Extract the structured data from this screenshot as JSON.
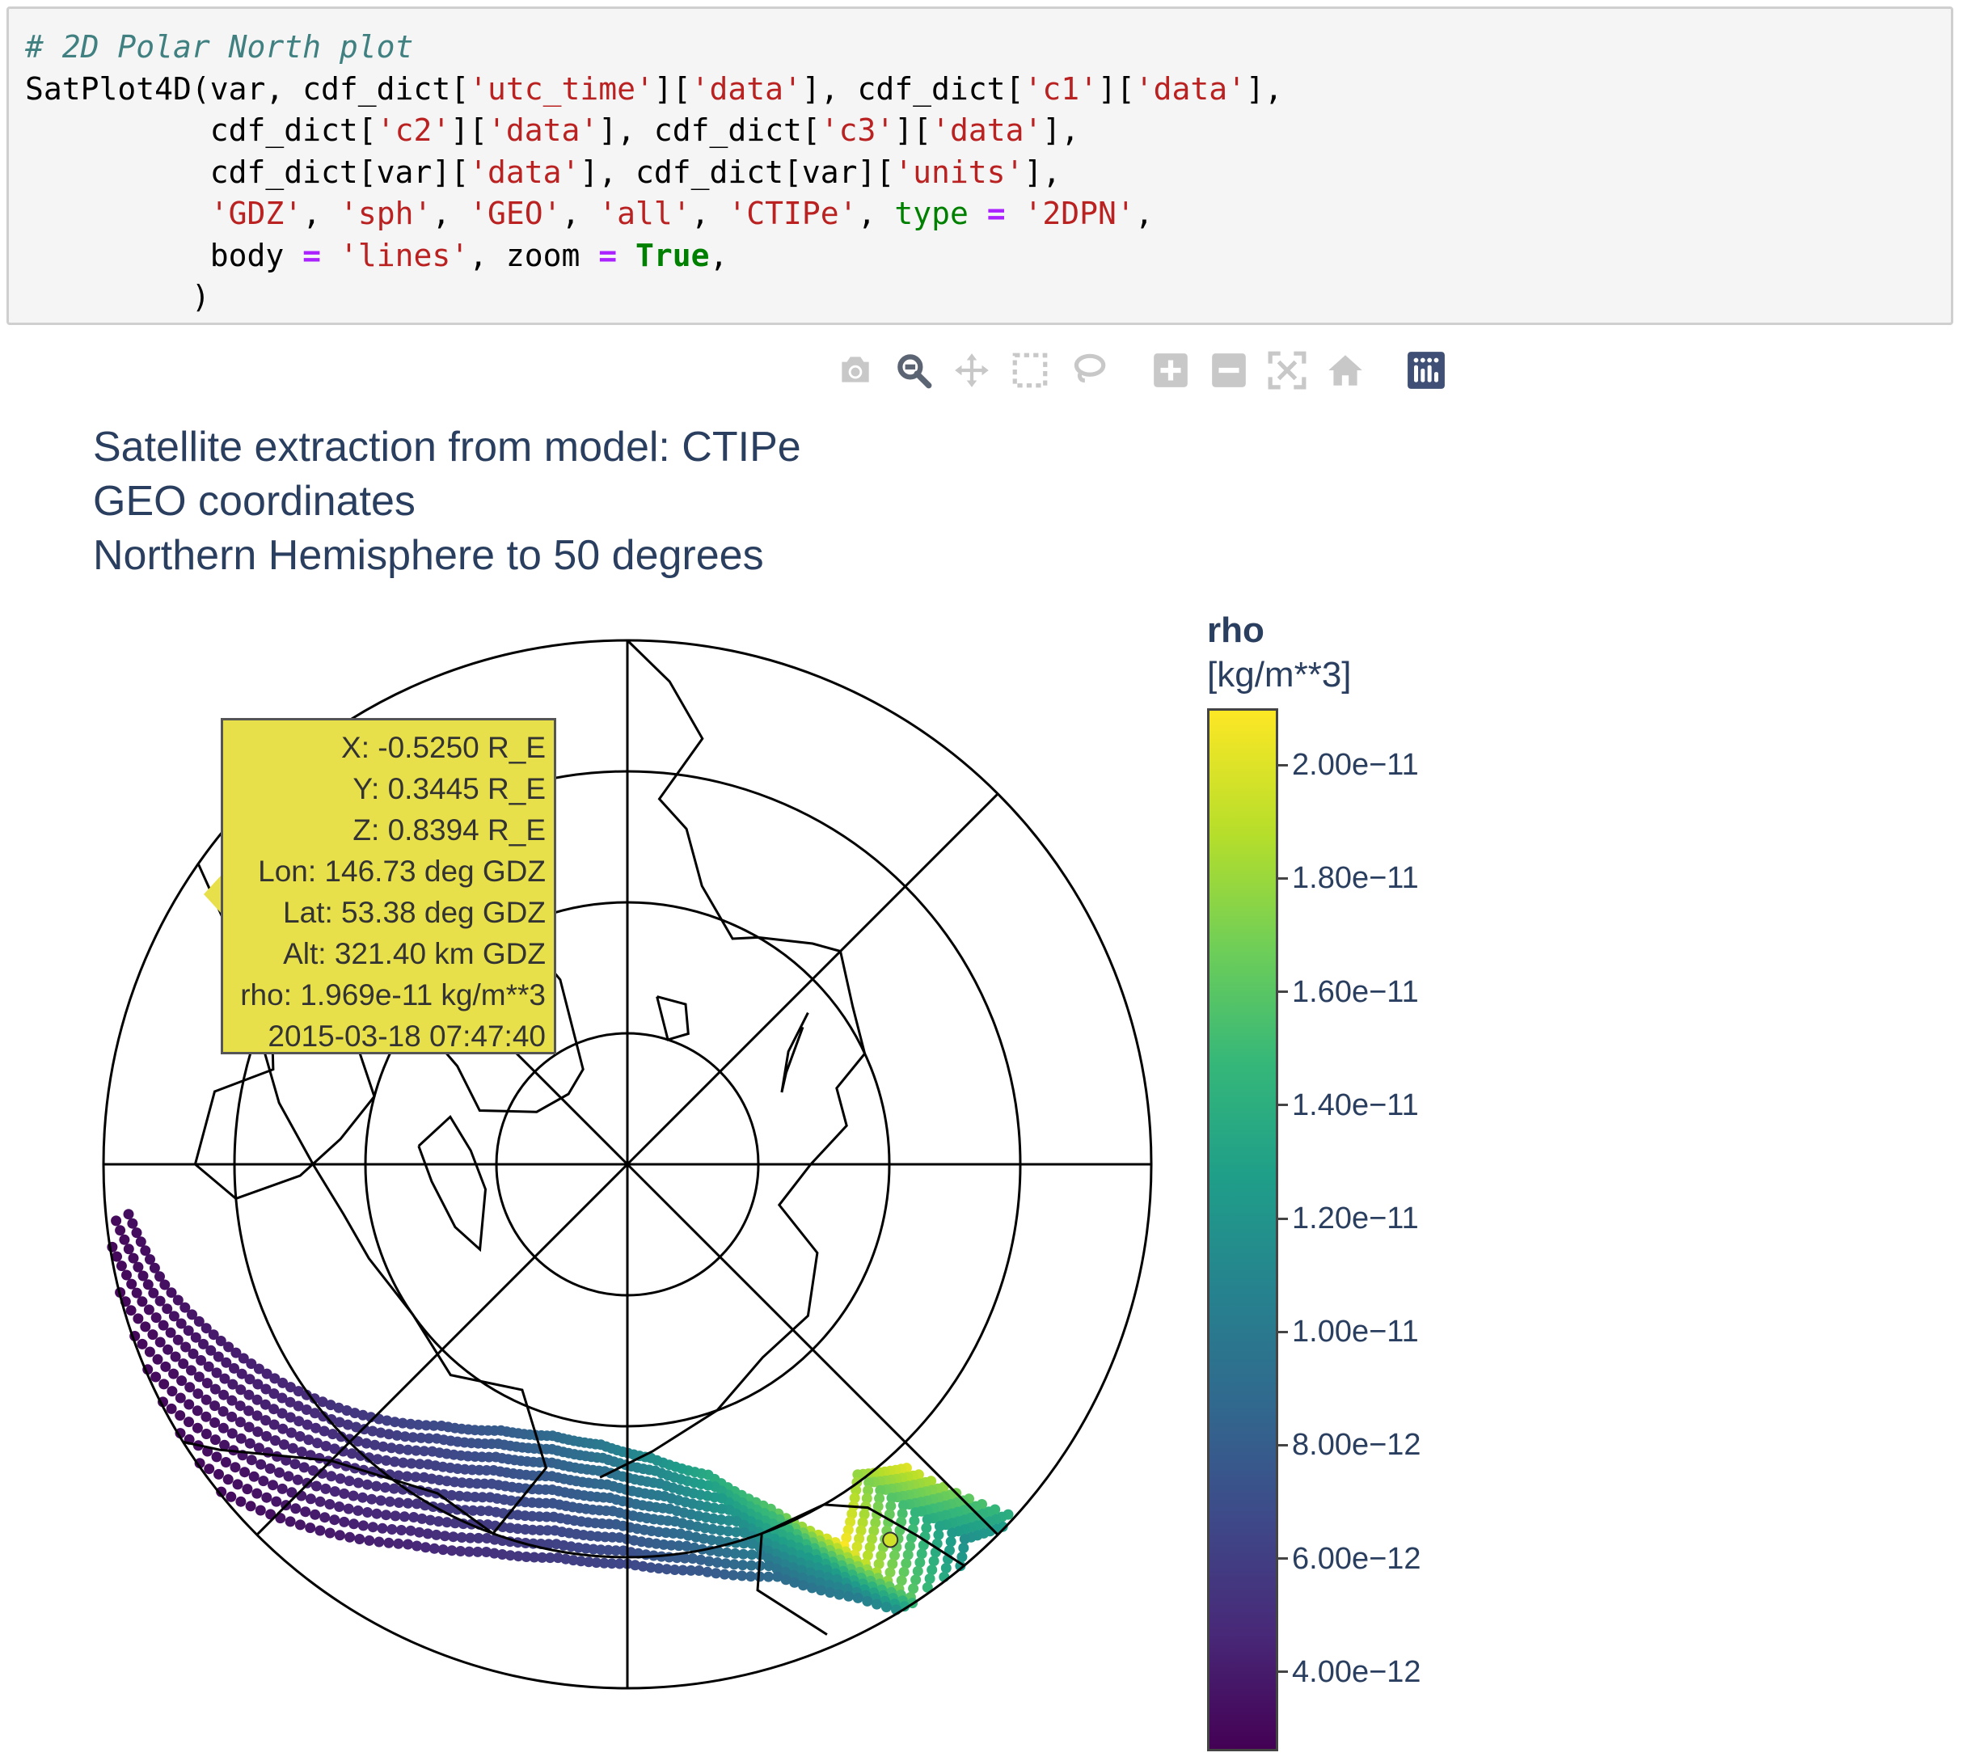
{
  "code": {
    "comment": "# 2D Polar North plot",
    "line2_parts": [
      "SatPlot4D(var, cdf_dict[",
      "'utc_time'",
      "][",
      "'data'",
      "], cdf_dict[",
      "'c1'",
      "][",
      "'data'",
      "],"
    ],
    "line3_parts": [
      "          cdf_dict[",
      "'c2'",
      "][",
      "'data'",
      "], cdf_dict[",
      "'c3'",
      "][",
      "'data'",
      "],"
    ],
    "line4_parts": [
      "          cdf_dict[var][",
      "'data'",
      "], cdf_dict[var][",
      "'units'",
      "],"
    ],
    "line5_parts": [
      "          ",
      "'GDZ'",
      ", ",
      "'sph'",
      ", ",
      "'GEO'",
      ", ",
      "'all'",
      ", ",
      "'CTIPe'",
      ", ",
      "type",
      " ",
      "=",
      " ",
      "'2DPN'",
      ","
    ],
    "line6_parts": [
      "          body ",
      "=",
      " ",
      "'lines'",
      ", zoom ",
      "=",
      " ",
      "True",
      ","
    ],
    "line7": "         )"
  },
  "modebar": {
    "buttons": [
      "camera-icon",
      "zoom-icon",
      "pan-icon",
      "box-select-icon",
      "lasso-select-icon",
      "zoom-in-icon",
      "zoom-out-icon",
      "autoscale-icon",
      "reset-axes-icon",
      "plotly-logo-icon"
    ]
  },
  "title": {
    "line1": "Satellite extraction from model: CTIPe",
    "line2": "GEO coordinates",
    "line3": "Northern Hemisphere to 50 degrees"
  },
  "colorbar": {
    "var": "rho",
    "units": "[kg/m**3]",
    "colorscale": [
      "#440154",
      "#482878",
      "#3e4989",
      "#31688e",
      "#26828e",
      "#1f9e89",
      "#35b779",
      "#6ece58",
      "#b5de2b",
      "#fde725"
    ],
    "ticks": [
      {
        "label": "2.00e−11",
        "value": 2e-11
      },
      {
        "label": "1.80e−11",
        "value": 1.8e-11
      },
      {
        "label": "1.60e−11",
        "value": 1.6e-11
      },
      {
        "label": "1.40e−11",
        "value": 1.4e-11
      },
      {
        "label": "1.20e−11",
        "value": 1.2e-11
      },
      {
        "label": "1.00e−11",
        "value": 1e-11
      },
      {
        "label": "8.00e−12",
        "value": 8e-12
      },
      {
        "label": "6.00e−12",
        "value": 6e-12
      },
      {
        "label": "4.00e−12",
        "value": 4e-12
      }
    ],
    "range": [
      2.6e-12,
      2.1e-11
    ]
  },
  "hover": {
    "lines": [
      "X: -0.5250 R_E",
      "Y: 0.3445 R_E",
      "Z: 0.8394 R_E",
      "Lon: 146.73 deg GDZ",
      "Lat: 53.38 deg GDZ",
      "Alt: 321.40 km GDZ",
      "rho: 1.969e-11 kg/m**3",
      "2015-03-18 07:47:40"
    ],
    "color": "#e8e04a"
  },
  "chart_data": {
    "type": "scatter",
    "projection": "north-polar",
    "lat_limit_deg": 50,
    "lat_circles_deg": [
      80,
      70,
      60,
      50
    ],
    "meridian_step_deg": 45,
    "coastlines": true,
    "series": [
      {
        "values": [
          [
            132,
            57,
            1.9e-11
          ],
          [
            138,
            59,
            1.7e-11
          ],
          [
            145,
            55,
            1.97e-11
          ],
          [
            152,
            60,
            1.5e-11
          ],
          [
            160,
            64,
            1.3e-11
          ],
          [
            170,
            66,
            1.1e-11
          ],
          [
            180,
            67,
            9.5e-12
          ],
          [
            -170,
            67,
            8.5e-12
          ],
          [
            -160,
            66,
            7.5e-12
          ],
          [
            -150,
            64,
            6.5e-12
          ],
          [
            -140,
            61,
            5.5e-12
          ],
          [
            -130,
            58,
            4.5e-12
          ],
          [
            -120,
            55,
            3.8e-12
          ],
          [
            -110,
            52,
            3.2e-12
          ],
          [
            -100,
            50,
            3e-12
          ]
        ]
      }
    ]
  }
}
